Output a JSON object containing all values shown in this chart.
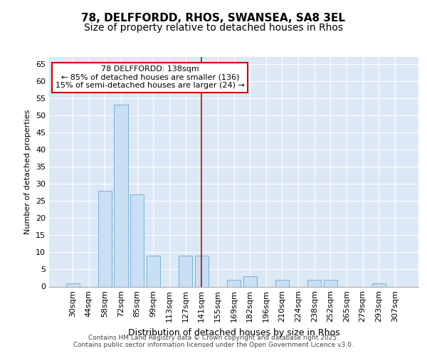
{
  "title": "78, DELFFORDD, RHOS, SWANSEA, SA8 3EL",
  "subtitle": "Size of property relative to detached houses in Rhos",
  "xlabel": "Distribution of detached houses by size in Rhos",
  "ylabel": "Number of detached properties",
  "categories": [
    "30sqm",
    "44sqm",
    "58sqm",
    "72sqm",
    "85sqm",
    "99sqm",
    "113sqm",
    "127sqm",
    "141sqm",
    "155sqm",
    "169sqm",
    "182sqm",
    "196sqm",
    "210sqm",
    "224sqm",
    "238sqm",
    "252sqm",
    "265sqm",
    "279sqm",
    "293sqm",
    "307sqm"
  ],
  "values": [
    1,
    0,
    28,
    53,
    27,
    9,
    0,
    9,
    9,
    0,
    2,
    3,
    0,
    2,
    0,
    2,
    2,
    0,
    0,
    1,
    0
  ],
  "bar_color": "#c8dff5",
  "bar_edge_color": "#7bafd4",
  "vline_x_index": 8,
  "vline_color": "#cc0000",
  "ylim": [
    0,
    67
  ],
  "yticks": [
    0,
    5,
    10,
    15,
    20,
    25,
    30,
    35,
    40,
    45,
    50,
    55,
    60,
    65
  ],
  "annotation_title": "78 DELFFORDD: 138sqm",
  "annotation_line1": "← 85% of detached houses are smaller (136)",
  "annotation_line2": "15% of semi-detached houses are larger (24) →",
  "annotation_box_facecolor": "#ffffff",
  "annotation_box_edgecolor": "#cc0000",
  "footer_line1": "Contains HM Land Registry data © Crown copyright and database right 2025.",
  "footer_line2": "Contains public sector information licensed under the Open Government Licence v3.0.",
  "plot_bg_color": "#dce8f5",
  "fig_bg_color": "#ffffff",
  "grid_color": "#ffffff",
  "title_fontsize": 11,
  "subtitle_fontsize": 10,
  "ylabel_fontsize": 8,
  "xlabel_fontsize": 9,
  "tick_fontsize": 8,
  "footer_fontsize": 6.5,
  "annot_fontsize": 8
}
